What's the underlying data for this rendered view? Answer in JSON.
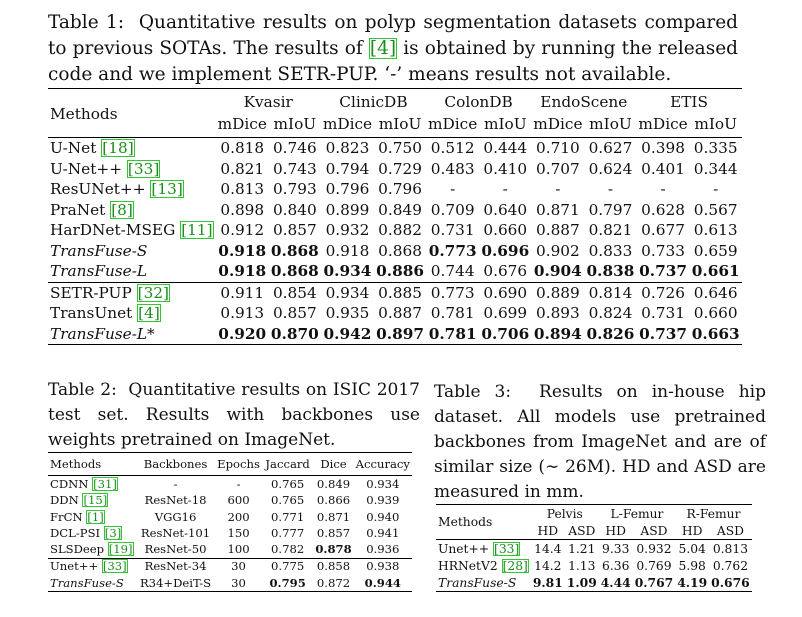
{
  "table1": {
    "caption": "Table 1:  Quantitative results on polyp segmentation datasets compared to previous SOTAs. The results of [4] is obtained by running the released code and we implement SETR-PUP. ‘-’ means results not available.",
    "col_methods": "Methods",
    "datasets": [
      "Kvasir",
      "ClinicDB",
      "ColonDB",
      "EndoScene",
      "ETIS"
    ],
    "metrics": [
      "mDice",
      "mIoU"
    ],
    "rows": [
      {
        "name": "U-Net",
        "ref": "[18]",
        "italic": false,
        "values": [
          "0.818",
          "0.746",
          "0.823",
          "0.750",
          "0.512",
          "0.444",
          "0.710",
          "0.627",
          "0.398",
          "0.335"
        ],
        "bold": []
      },
      {
        "name": "U-Net++",
        "ref": "[33]",
        "italic": false,
        "values": [
          "0.821",
          "0.743",
          "0.794",
          "0.729",
          "0.483",
          "0.410",
          "0.707",
          "0.624",
          "0.401",
          "0.344"
        ],
        "bold": []
      },
      {
        "name": "ResUNet++",
        "ref": "[13]",
        "italic": false,
        "values": [
          "0.813",
          "0.793",
          "0.796",
          "0.796",
          "-",
          "-",
          "-",
          "-",
          "-",
          "-"
        ],
        "bold": []
      },
      {
        "name": "PraNet",
        "ref": "[8]",
        "italic": false,
        "values": [
          "0.898",
          "0.840",
          "0.899",
          "0.849",
          "0.709",
          "0.640",
          "0.871",
          "0.797",
          "0.628",
          "0.567"
        ],
        "bold": []
      },
      {
        "name": "HarDNet-MSEG",
        "ref": "[11]",
        "italic": false,
        "values": [
          "0.912",
          "0.857",
          "0.932",
          "0.882",
          "0.731",
          "0.660",
          "0.887",
          "0.821",
          "0.677",
          "0.613"
        ],
        "bold": []
      },
      {
        "name": "TransFuse-S",
        "ref": "",
        "italic": true,
        "values": [
          "0.918",
          "0.868",
          "0.918",
          "0.868",
          "0.773",
          "0.696",
          "0.902",
          "0.833",
          "0.733",
          "0.659"
        ],
        "bold": [
          0,
          1,
          4,
          5
        ]
      },
      {
        "name": "TransFuse-L",
        "ref": "",
        "italic": true,
        "values": [
          "0.918",
          "0.868",
          "0.934",
          "0.886",
          "0.744",
          "0.676",
          "0.904",
          "0.838",
          "0.737",
          "0.661"
        ],
        "bold": [
          0,
          1,
          2,
          3,
          6,
          7,
          8,
          9
        ]
      },
      {
        "name": "SETR-PUP",
        "ref": "[32]",
        "italic": false,
        "values": [
          "0.911",
          "0.854",
          "0.934",
          "0.885",
          "0.773",
          "0.690",
          "0.889",
          "0.814",
          "0.726",
          "0.646"
        ],
        "bold": []
      },
      {
        "name": "TransUnet",
        "ref": "[4]",
        "italic": false,
        "values": [
          "0.913",
          "0.857",
          "0.935",
          "0.887",
          "0.781",
          "0.699",
          "0.893",
          "0.824",
          "0.731",
          "0.660"
        ],
        "bold": []
      },
      {
        "name": "TransFuse-L*",
        "ref": "",
        "italic": true,
        "values": [
          "0.920",
          "0.870",
          "0.942",
          "0.897",
          "0.781",
          "0.706",
          "0.894",
          "0.826",
          "0.737",
          "0.663"
        ],
        "bold": [
          0,
          1,
          2,
          3,
          4,
          5,
          6,
          7,
          8,
          9
        ]
      }
    ]
  },
  "table2": {
    "caption": "Table 2:  Quantitative results on ISIC 2017 test set. Results with backbones use weights pretrained on ImageNet.",
    "headers": [
      "Methods",
      "Backbones",
      "Epochs",
      "Jaccard",
      "Dice",
      "Accuracy"
    ],
    "rows": [
      {
        "name": "CDNN",
        "ref": "[31]",
        "italic": false,
        "values": [
          "-",
          "-",
          "0.765",
          "0.849",
          "0.934"
        ],
        "bold": []
      },
      {
        "name": "DDN",
        "ref": "[15]",
        "italic": false,
        "values": [
          "ResNet-18",
          "600",
          "0.765",
          "0.866",
          "0.939"
        ],
        "bold": []
      },
      {
        "name": "FrCN",
        "ref": "[1]",
        "italic": false,
        "values": [
          "VGG16",
          "200",
          "0.771",
          "0.871",
          "0.940"
        ],
        "bold": []
      },
      {
        "name": "DCL-PSI",
        "ref": "[3]",
        "italic": false,
        "values": [
          "ResNet-101",
          "150",
          "0.777",
          "0.857",
          "0.941"
        ],
        "bold": []
      },
      {
        "name": "SLSDeep",
        "ref": "[19]",
        "italic": false,
        "values": [
          "ResNet-50",
          "100",
          "0.782",
          "0.878",
          "0.936"
        ],
        "bold": [
          3
        ]
      },
      {
        "name": "Unet++",
        "ref": "[33]",
        "italic": false,
        "values": [
          "ResNet-34",
          "30",
          "0.775",
          "0.858",
          "0.938"
        ],
        "bold": []
      },
      {
        "name": "TransFuse-S",
        "ref": "",
        "italic": true,
        "values": [
          "R34+DeiT-S",
          "30",
          "0.795",
          "0.872",
          "0.944"
        ],
        "bold": [
          2,
          4
        ]
      }
    ]
  },
  "table3": {
    "caption": "Table 3:  Results on in-house hip dataset. All models use pretrained backbones from ImageNet and are of similar size (∼ 26M). HD and ASD are measured in mm.",
    "col_methods": "Methods",
    "groups": [
      "Pelvis",
      "L-Femur",
      "R-Femur"
    ],
    "metrics": [
      "HD",
      "ASD"
    ],
    "rows": [
      {
        "name": "Unet++",
        "ref": "[33]",
        "italic": false,
        "values": [
          "14.4",
          "1.21",
          "9.33",
          "0.932",
          "5.04",
          "0.813"
        ],
        "bold": []
      },
      {
        "name": "HRNetV2",
        "ref": "[28]",
        "italic": false,
        "values": [
          "14.2",
          "1.13",
          "6.36",
          "0.769",
          "5.98",
          "0.762"
        ],
        "bold": []
      },
      {
        "name": "TransFuse-S",
        "ref": "",
        "italic": true,
        "values": [
          "9.81",
          "1.09",
          "4.44",
          "0.767",
          "4.19",
          "0.676"
        ],
        "bold": [
          0,
          1,
          2,
          3,
          4,
          5
        ]
      }
    ]
  }
}
